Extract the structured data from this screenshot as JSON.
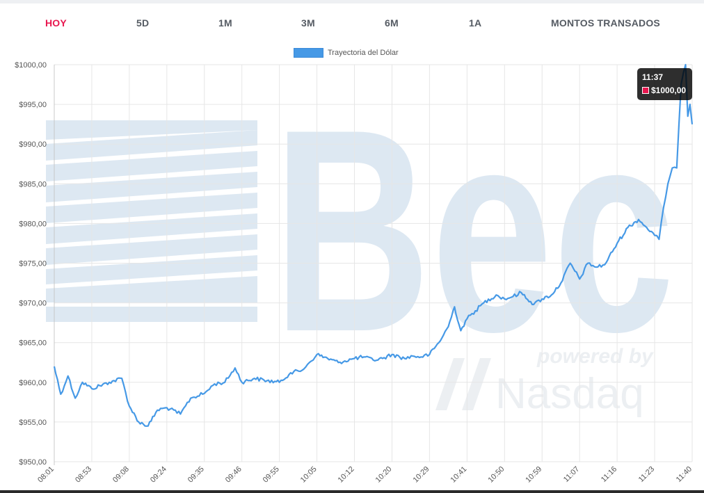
{
  "tabs": [
    {
      "label": "HOY",
      "active": true
    },
    {
      "label": "5D",
      "active": false
    },
    {
      "label": "1M",
      "active": false
    },
    {
      "label": "3M",
      "active": false
    },
    {
      "label": "6M",
      "active": false
    },
    {
      "label": "1A",
      "active": false
    },
    {
      "label": "MONTOS TRANSADOS",
      "active": false
    }
  ],
  "watermark": {
    "brand": "Bec",
    "powered_by": "powered by",
    "partner": "Nasdaq"
  },
  "tooltip": {
    "time": "11:37",
    "value": "$1000,00",
    "marker_color": "#e8174f"
  },
  "colors": {
    "line": "#4699e6",
    "active_tab": "#e8174f",
    "tab": "#555b63",
    "grid": "#e6e6e6",
    "watermark": "#dbe6f0"
  },
  "chart_data": {
    "type": "line",
    "xlabel": "",
    "ylabel": "",
    "ylim": [
      950,
      1000
    ],
    "y_ticks": [
      1000,
      995,
      990,
      985,
      980,
      975,
      970,
      965,
      960,
      955,
      950
    ],
    "y_tick_labels": [
      "$1000,00",
      "$995,00",
      "$990,00",
      "$985,00",
      "$980,00",
      "$975,00",
      "$970,00",
      "$965,00",
      "$960,00",
      "$955,00",
      "$950,00"
    ],
    "x_tick_labels": [
      "08:01",
      "08:53",
      "09:08",
      "09:24",
      "09:35",
      "09:46",
      "09:55",
      "10:05",
      "10:12",
      "10:20",
      "10:29",
      "10:41",
      "10:50",
      "10:59",
      "11:07",
      "11:16",
      "11:23",
      "11:40"
    ],
    "legend_position": "top-center",
    "grid": true,
    "series": [
      {
        "name": "Trayectoria del Dólar",
        "color": "#4699e6",
        "x": [
          "08:01",
          "08:10",
          "08:20",
          "08:30",
          "08:40",
          "08:53",
          "09:00",
          "09:05",
          "09:08",
          "09:12",
          "09:16",
          "09:20",
          "09:24",
          "09:28",
          "09:31",
          "09:35",
          "09:38",
          "09:41",
          "09:44",
          "09:46",
          "09:49",
          "09:52",
          "09:55",
          "09:58",
          "10:01",
          "10:03",
          "10:05",
          "10:07",
          "10:09",
          "10:12",
          "10:14",
          "10:16",
          "10:18",
          "10:20",
          "10:23",
          "10:25",
          "10:27",
          "10:29",
          "10:32",
          "10:35",
          "10:37",
          "10:39",
          "10:41",
          "10:43",
          "10:45",
          "10:48",
          "10:50",
          "10:52",
          "10:54",
          "10:57",
          "10:59",
          "11:01",
          "11:03",
          "11:05",
          "11:07",
          "11:09",
          "11:11",
          "11:13",
          "11:16",
          "11:18",
          "11:20",
          "11:23",
          "11:25",
          "11:27",
          "11:29",
          "11:31",
          "11:33",
          "11:35",
          "11:37",
          "11:38",
          "11:39",
          "11:40"
        ],
        "values": [
          962.0,
          958.5,
          960.8,
          958.0,
          960.0,
          959.2,
          960.0,
          960.5,
          957.0,
          955.0,
          954.5,
          956.5,
          956.8,
          956.0,
          958.0,
          958.6,
          959.8,
          960.0,
          961.8,
          960.0,
          960.5,
          960.2,
          960.0,
          961.2,
          961.5,
          962.5,
          963.5,
          963.0,
          962.5,
          963.0,
          963.2,
          962.8,
          963.0,
          963.5,
          963.0,
          963.3,
          963.2,
          963.5,
          965.0,
          967.0,
          969.5,
          966.5,
          968.0,
          969.0,
          970.0,
          971.0,
          970.5,
          970.8,
          971.3,
          969.8,
          970.5,
          971.0,
          972.5,
          975.0,
          973.0,
          975.0,
          974.5,
          974.8,
          977.5,
          979.5,
          980.5,
          978.5,
          978.0,
          982.0,
          985.0,
          987.0,
          987.0,
          997.5,
          1000.0,
          993.5,
          995.0,
          992.5
        ]
      }
    ]
  }
}
